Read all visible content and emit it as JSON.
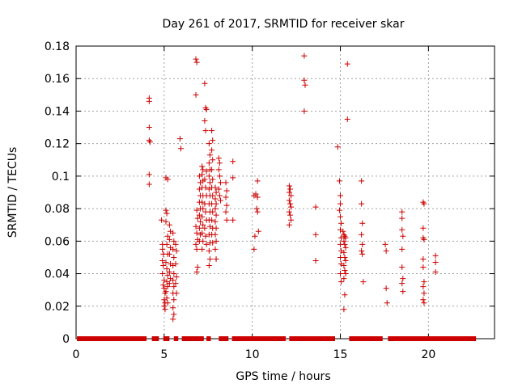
{
  "chart_data": {
    "type": "scatter",
    "title": "Day 261 of 2017, SRMTID for receiver skar",
    "xlabel": "GPS time / hours",
    "ylabel": "SRMTID / TECUs",
    "xlim": [
      0,
      23.75
    ],
    "ylim": [
      0,
      0.18
    ],
    "x_ticks": [
      0,
      5,
      10,
      15,
      20
    ],
    "x_tick_labels": [
      "0",
      "5",
      "10",
      "15",
      "20"
    ],
    "y_ticks": [
      0,
      0.02,
      0.04,
      0.06,
      0.08,
      0.1,
      0.12,
      0.14,
      0.16,
      0.18
    ],
    "y_tick_labels": [
      "0",
      "0.02",
      "0.04",
      "0.06",
      "0.08",
      "0.1",
      "0.12",
      "0.14",
      "0.16",
      "0.18"
    ],
    "grid": true,
    "marker": "+",
    "color": "#cc0000",
    "series": [
      {
        "name": "SRMTID",
        "points": [
          [
            4.15,
            0.146
          ],
          [
            4.15,
            0.148
          ],
          [
            4.15,
            0.13
          ],
          [
            4.15,
            0.122
          ],
          [
            4.2,
            0.121
          ],
          [
            4.15,
            0.101
          ],
          [
            4.15,
            0.095
          ],
          [
            4.85,
            0.073
          ],
          [
            4.9,
            0.058
          ],
          [
            4.9,
            0.055
          ],
          [
            4.95,
            0.052
          ],
          [
            4.9,
            0.048
          ],
          [
            4.95,
            0.045
          ],
          [
            4.9,
            0.04
          ],
          [
            5.0,
            0.036
          ],
          [
            4.95,
            0.033
          ],
          [
            5.0,
            0.031
          ],
          [
            5.05,
            0.028
          ],
          [
            5.0,
            0.024
          ],
          [
            5.05,
            0.022
          ],
          [
            5.0,
            0.02
          ],
          [
            5.05,
            0.018
          ],
          [
            5.1,
            0.079
          ],
          [
            5.15,
            0.077
          ],
          [
            5.1,
            0.072
          ],
          [
            5.2,
            0.063
          ],
          [
            5.15,
            0.058
          ],
          [
            5.2,
            0.052
          ],
          [
            5.1,
            0.047
          ],
          [
            5.15,
            0.043
          ],
          [
            5.2,
            0.039
          ],
          [
            5.15,
            0.035
          ],
          [
            5.2,
            0.032
          ],
          [
            5.1,
            0.029
          ],
          [
            5.15,
            0.025
          ],
          [
            5.2,
            0.022
          ],
          [
            5.1,
            0.099
          ],
          [
            5.2,
            0.098
          ],
          [
            5.3,
            0.07
          ],
          [
            5.35,
            0.066
          ],
          [
            5.3,
            0.061
          ],
          [
            5.35,
            0.056
          ],
          [
            5.3,
            0.052
          ],
          [
            5.35,
            0.046
          ],
          [
            5.3,
            0.041
          ],
          [
            5.35,
            0.037
          ],
          [
            5.3,
            0.034
          ],
          [
            5.5,
            0.065
          ],
          [
            5.55,
            0.06
          ],
          [
            5.5,
            0.055
          ],
          [
            5.55,
            0.05
          ],
          [
            5.5,
            0.045
          ],
          [
            5.55,
            0.04
          ],
          [
            5.5,
            0.036
          ],
          [
            5.55,
            0.032
          ],
          [
            5.5,
            0.028
          ],
          [
            5.55,
            0.024
          ],
          [
            5.5,
            0.019
          ],
          [
            5.55,
            0.015
          ],
          [
            5.5,
            0.012
          ],
          [
            5.65,
            0.058
          ],
          [
            5.7,
            0.054
          ],
          [
            5.65,
            0.046
          ],
          [
            5.7,
            0.038
          ],
          [
            5.65,
            0.034
          ],
          [
            5.7,
            0.028
          ],
          [
            5.9,
            0.123
          ],
          [
            5.95,
            0.117
          ],
          [
            6.8,
            0.172
          ],
          [
            6.85,
            0.17
          ],
          [
            6.8,
            0.15
          ],
          [
            6.85,
            0.079
          ],
          [
            6.9,
            0.074
          ],
          [
            6.8,
            0.069
          ],
          [
            6.85,
            0.065
          ],
          [
            6.9,
            0.061
          ],
          [
            6.8,
            0.058
          ],
          [
            6.85,
            0.055
          ],
          [
            6.9,
            0.044
          ],
          [
            6.85,
            0.041
          ],
          [
            7.0,
            0.1
          ],
          [
            7.05,
            0.096
          ],
          [
            7.0,
            0.092
          ],
          [
            7.05,
            0.088
          ],
          [
            7.0,
            0.084
          ],
          [
            7.05,
            0.08
          ],
          [
            7.0,
            0.076
          ],
          [
            7.05,
            0.072
          ],
          [
            7.0,
            0.068
          ],
          [
            7.05,
            0.064
          ],
          [
            7.0,
            0.06
          ],
          [
            7.15,
            0.106
          ],
          [
            7.2,
            0.104
          ],
          [
            7.15,
            0.101
          ],
          [
            7.2,
            0.097
          ],
          [
            7.15,
            0.093
          ],
          [
            7.2,
            0.088
          ],
          [
            7.15,
            0.084
          ],
          [
            7.2,
            0.08
          ],
          [
            7.15,
            0.075
          ],
          [
            7.2,
            0.07
          ],
          [
            7.15,
            0.065
          ],
          [
            7.2,
            0.06
          ],
          [
            7.15,
            0.055
          ],
          [
            7.3,
            0.157
          ],
          [
            7.35,
            0.142
          ],
          [
            7.4,
            0.141
          ],
          [
            7.3,
            0.134
          ],
          [
            7.35,
            0.128
          ],
          [
            7.4,
            0.103
          ],
          [
            7.3,
            0.098
          ],
          [
            7.35,
            0.093
          ],
          [
            7.4,
            0.088
          ],
          [
            7.3,
            0.083
          ],
          [
            7.35,
            0.078
          ],
          [
            7.4,
            0.073
          ],
          [
            7.3,
            0.068
          ],
          [
            7.35,
            0.063
          ],
          [
            7.4,
            0.058
          ],
          [
            7.55,
            0.12
          ],
          [
            7.6,
            0.113
          ],
          [
            7.55,
            0.108
          ],
          [
            7.6,
            0.104
          ],
          [
            7.55,
            0.1
          ],
          [
            7.6,
            0.096
          ],
          [
            7.55,
            0.092
          ],
          [
            7.6,
            0.088
          ],
          [
            7.55,
            0.083
          ],
          [
            7.6,
            0.078
          ],
          [
            7.55,
            0.073
          ],
          [
            7.6,
            0.069
          ],
          [
            7.55,
            0.064
          ],
          [
            7.6,
            0.059
          ],
          [
            7.55,
            0.054
          ],
          [
            7.6,
            0.049
          ],
          [
            7.55,
            0.045
          ],
          [
            7.7,
            0.128
          ],
          [
            7.75,
            0.122
          ],
          [
            7.7,
            0.116
          ],
          [
            7.75,
            0.11
          ],
          [
            7.7,
            0.104
          ],
          [
            7.75,
            0.098
          ],
          [
            7.7,
            0.093
          ],
          [
            7.75,
            0.088
          ],
          [
            7.7,
            0.083
          ],
          [
            7.75,
            0.078
          ],
          [
            7.7,
            0.073
          ],
          [
            7.75,
            0.068
          ],
          [
            7.7,
            0.064
          ],
          [
            7.75,
            0.059
          ],
          [
            7.9,
            0.093
          ],
          [
            7.95,
            0.09
          ],
          [
            7.9,
            0.086
          ],
          [
            7.95,
            0.083
          ],
          [
            7.9,
            0.08
          ],
          [
            7.95,
            0.076
          ],
          [
            7.9,
            0.072
          ],
          [
            7.95,
            0.068
          ],
          [
            7.9,
            0.064
          ],
          [
            7.95,
            0.06
          ],
          [
            7.9,
            0.055
          ],
          [
            7.95,
            0.049
          ],
          [
            8.1,
            0.111
          ],
          [
            8.15,
            0.108
          ],
          [
            8.1,
            0.104
          ],
          [
            8.15,
            0.1
          ],
          [
            8.2,
            0.096
          ],
          [
            8.1,
            0.092
          ],
          [
            8.15,
            0.088
          ],
          [
            8.2,
            0.085
          ],
          [
            8.5,
            0.096
          ],
          [
            8.55,
            0.091
          ],
          [
            8.5,
            0.087
          ],
          [
            8.55,
            0.082
          ],
          [
            8.5,
            0.078
          ],
          [
            8.55,
            0.073
          ],
          [
            8.9,
            0.109
          ],
          [
            8.9,
            0.099
          ],
          [
            8.9,
            0.073
          ],
          [
            10.1,
            0.055
          ],
          [
            10.15,
            0.063
          ],
          [
            10.1,
            0.088
          ],
          [
            10.2,
            0.089
          ],
          [
            10.3,
            0.097
          ],
          [
            10.3,
            0.087
          ],
          [
            10.25,
            0.08
          ],
          [
            10.3,
            0.078
          ],
          [
            10.35,
            0.066
          ],
          [
            12.1,
            0.094
          ],
          [
            12.15,
            0.092
          ],
          [
            12.1,
            0.09
          ],
          [
            12.2,
            0.088
          ],
          [
            12.1,
            0.085
          ],
          [
            12.15,
            0.083
          ],
          [
            12.2,
            0.081
          ],
          [
            12.1,
            0.078
          ],
          [
            12.15,
            0.076
          ],
          [
            12.2,
            0.073
          ],
          [
            12.1,
            0.07
          ],
          [
            12.95,
            0.174
          ],
          [
            12.95,
            0.159
          ],
          [
            13.0,
            0.156
          ],
          [
            12.95,
            0.14
          ],
          [
            13.6,
            0.081
          ],
          [
            13.6,
            0.064
          ],
          [
            13.6,
            0.048
          ],
          [
            14.85,
            0.118
          ],
          [
            14.95,
            0.097
          ],
          [
            15.0,
            0.088
          ],
          [
            15.0,
            0.083
          ],
          [
            14.95,
            0.079
          ],
          [
            15.0,
            0.075
          ],
          [
            15.05,
            0.071
          ],
          [
            15.0,
            0.067
          ],
          [
            15.05,
            0.062
          ],
          [
            15.0,
            0.058
          ],
          [
            15.05,
            0.054
          ],
          [
            15.0,
            0.05
          ],
          [
            15.05,
            0.046
          ],
          [
            15.0,
            0.04
          ],
          [
            15.05,
            0.035
          ],
          [
            15.15,
            0.066
          ],
          [
            15.2,
            0.064
          ],
          [
            15.25,
            0.063
          ],
          [
            15.3,
            0.062
          ],
          [
            15.2,
            0.06
          ],
          [
            15.25,
            0.058
          ],
          [
            15.3,
            0.056
          ],
          [
            15.2,
            0.053
          ],
          [
            15.25,
            0.05
          ],
          [
            15.3,
            0.048
          ],
          [
            15.2,
            0.045
          ],
          [
            15.25,
            0.042
          ],
          [
            15.3,
            0.04
          ],
          [
            15.2,
            0.037
          ],
          [
            15.25,
            0.027
          ],
          [
            15.2,
            0.018
          ],
          [
            15.4,
            0.169
          ],
          [
            15.4,
            0.135
          ],
          [
            16.2,
            0.097
          ],
          [
            16.2,
            0.083
          ],
          [
            16.25,
            0.071
          ],
          [
            16.2,
            0.064
          ],
          [
            16.25,
            0.058
          ],
          [
            16.2,
            0.054
          ],
          [
            16.25,
            0.052
          ],
          [
            16.3,
            0.035
          ],
          [
            17.55,
            0.058
          ],
          [
            17.6,
            0.054
          ],
          [
            17.6,
            0.031
          ],
          [
            17.65,
            0.022
          ],
          [
            18.5,
            0.078
          ],
          [
            18.5,
            0.074
          ],
          [
            18.5,
            0.067
          ],
          [
            18.55,
            0.063
          ],
          [
            18.5,
            0.055
          ],
          [
            18.5,
            0.044
          ],
          [
            18.55,
            0.037
          ],
          [
            18.5,
            0.034
          ],
          [
            18.55,
            0.029
          ],
          [
            19.7,
            0.084
          ],
          [
            19.75,
            0.083
          ],
          [
            19.7,
            0.068
          ],
          [
            19.7,
            0.062
          ],
          [
            19.75,
            0.061
          ],
          [
            19.7,
            0.049
          ],
          [
            19.7,
            0.044
          ],
          [
            19.75,
            0.035
          ],
          [
            19.7,
            0.032
          ],
          [
            19.75,
            0.028
          ],
          [
            19.7,
            0.024
          ],
          [
            19.75,
            0.022
          ],
          [
            20.4,
            0.051
          ],
          [
            20.4,
            0.047
          ],
          [
            20.4,
            0.041
          ]
        ],
        "baseline_segments": [
          [
            0.05,
            4.0
          ],
          [
            4.3,
            4.7
          ],
          [
            4.95,
            5.3
          ],
          [
            5.55,
            5.8
          ],
          [
            6.0,
            7.25
          ],
          [
            7.4,
            7.65
          ],
          [
            8.1,
            8.65
          ],
          [
            8.85,
            11.9
          ],
          [
            12.1,
            14.7
          ],
          [
            15.5,
            17.4
          ],
          [
            17.7,
            22.7
          ]
        ]
      }
    ]
  }
}
